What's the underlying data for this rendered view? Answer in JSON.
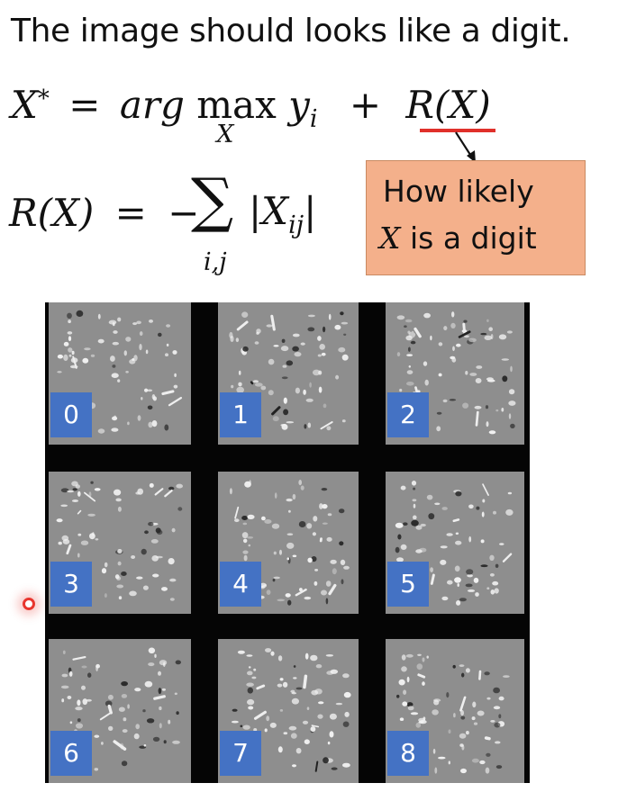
{
  "title": "The image should looks like a digit.",
  "equation1": {
    "x_star": "X",
    "star": "*",
    "equals": "=",
    "argmax_text": "arg",
    "max": "max",
    "max_sub": "X",
    "y": "y",
    "y_sub": "i",
    "plus": "+",
    "rx": "R(X)"
  },
  "equation2": {
    "lhs": "R(X)",
    "equals": "=",
    "minus": "−",
    "sum": "∑",
    "sum_sub": "i,j",
    "abs_open": "|",
    "x": "X",
    "x_sub": "ij",
    "abs_close": "|"
  },
  "callout": {
    "line1": "How likely",
    "line2_var": "X",
    "line2_rest": " is a digit"
  },
  "digits": [
    "0",
    "1",
    "2",
    "3",
    "4",
    "5",
    "6",
    "7",
    "8"
  ],
  "colors": {
    "callout_bg": "#f4b08b",
    "label_bg": "#4472c4",
    "underline": "#e0302a",
    "grid_bg": "#050505",
    "cell_gray": "#8e8e8e"
  }
}
